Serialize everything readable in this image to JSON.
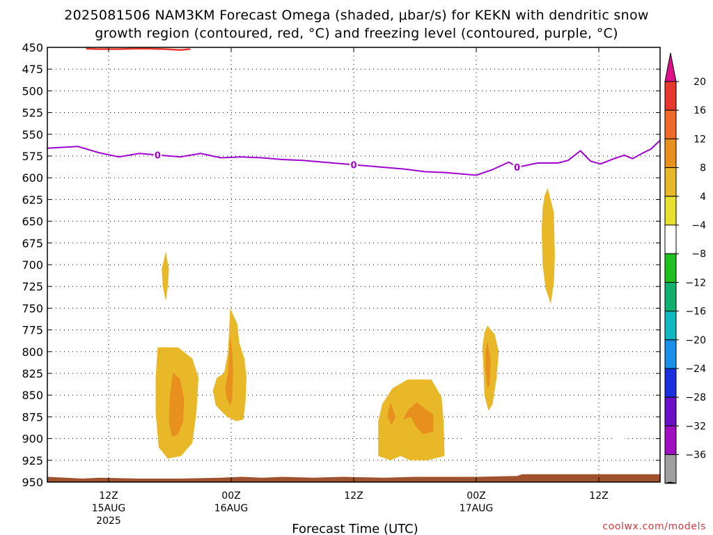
{
  "chart_data": {
    "type": "heatmap",
    "title_lines": [
      "2025081506 NAM3KM Forecast Omega (shaded, μbar/s) for KEKN with dendritic snow",
      "growth region (contoured, red, °C) and freezing level (contoured, purple, °C)"
    ],
    "xlabel": "Forecast Time (UTC)",
    "credit": "coolwx.com/models",
    "x_axis": {
      "unit": "hours from 2025081506",
      "range": [
        0,
        60
      ],
      "ticks": [
        {
          "hour": 6,
          "lines": [
            "12Z",
            "15AUG",
            "2025"
          ]
        },
        {
          "hour": 18,
          "lines": [
            "00Z",
            "16AUG"
          ]
        },
        {
          "hour": 30,
          "lines": [
            "12Z"
          ]
        },
        {
          "hour": 42,
          "lines": [
            "00Z",
            "17AUG"
          ]
        },
        {
          "hour": 54,
          "lines": [
            "12Z"
          ]
        }
      ]
    },
    "y_axis": {
      "unit": "hPa",
      "range": [
        450,
        950
      ],
      "ticks": [
        450,
        475,
        500,
        525,
        550,
        575,
        600,
        625,
        650,
        675,
        700,
        725,
        750,
        775,
        800,
        825,
        850,
        875,
        900,
        925,
        950
      ]
    },
    "grid": true,
    "colorbar": {
      "unit": "μbar/s",
      "boundaries": [
        20,
        16,
        12,
        8,
        4,
        -4,
        -8,
        -12,
        -16,
        -20,
        -24,
        -28,
        -32,
        -36
      ],
      "colors": [
        "#e8382e",
        "#f06a2a",
        "#e8901e",
        "#e8b828",
        "#e6e030",
        "#ffffff",
        "#20c020",
        "#12b070",
        "#10b8c0",
        "#1a90e8",
        "#1a30e0",
        "#6a10c8",
        "#a010c0",
        "#a0a0a0"
      ],
      "top_arrow_color": "#e0108a",
      "bottom_arrow_color": "#000000"
    },
    "freezing_level": {
      "color": "#a000d0",
      "contour_label": "0",
      "label_hours": [
        10.8,
        30,
        46
      ],
      "points": [
        [
          0,
          566
        ],
        [
          3,
          564
        ],
        [
          5,
          571
        ],
        [
          7,
          576
        ],
        [
          9,
          572
        ],
        [
          11,
          574
        ],
        [
          13,
          576
        ],
        [
          15,
          572
        ],
        [
          17,
          577
        ],
        [
          19,
          576
        ],
        [
          21,
          577
        ],
        [
          23,
          579
        ],
        [
          25,
          580
        ],
        [
          27,
          582
        ],
        [
          29,
          584
        ],
        [
          31,
          586
        ],
        [
          33,
          588
        ],
        [
          35,
          590
        ],
        [
          37,
          593
        ],
        [
          39,
          594
        ],
        [
          42,
          597
        ],
        [
          43.5,
          591
        ],
        [
          45.2,
          582
        ],
        [
          46,
          588
        ],
        [
          48,
          583
        ],
        [
          50,
          583
        ],
        [
          51,
          580
        ],
        [
          52.2,
          569
        ],
        [
          53.2,
          581
        ],
        [
          54.2,
          584
        ],
        [
          55.5,
          578
        ],
        [
          56.5,
          574
        ],
        [
          57.3,
          578
        ],
        [
          58.4,
          571
        ],
        [
          59.1,
          567
        ],
        [
          60,
          557
        ]
      ]
    },
    "dgz_contour": {
      "color": "#e8382e",
      "points": [
        [
          3.8,
          451.5
        ],
        [
          5,
          452
        ],
        [
          7,
          452
        ],
        [
          8.5,
          451.5
        ],
        [
          10,
          451.5
        ],
        [
          11.5,
          452
        ],
        [
          13,
          453
        ],
        [
          14,
          452
        ]
      ]
    },
    "omega_areas": [
      {
        "value_band": "4 to 8",
        "points": [
          [
            11.6,
            685
          ],
          [
            11.9,
            705
          ],
          [
            11.8,
            725
          ],
          [
            11.6,
            742
          ],
          [
            11.3,
            725
          ],
          [
            11.2,
            705
          ]
        ]
      },
      {
        "value_band": "4 to 8",
        "points": [
          [
            10.8,
            795
          ],
          [
            12.8,
            795
          ],
          [
            14.2,
            808
          ],
          [
            14.8,
            830
          ],
          [
            14.6,
            870
          ],
          [
            14.2,
            905
          ],
          [
            13.1,
            920
          ],
          [
            11.8,
            923
          ],
          [
            10.9,
            910
          ],
          [
            10.6,
            870
          ],
          [
            10.6,
            830
          ]
        ]
      },
      {
        "value_band": "8 to 12",
        "points": [
          [
            12.3,
            824
          ],
          [
            13.0,
            832
          ],
          [
            13.4,
            855
          ],
          [
            13.3,
            880
          ],
          [
            12.8,
            895
          ],
          [
            12.2,
            898
          ],
          [
            11.9,
            880
          ],
          [
            12.0,
            850
          ]
        ]
      },
      {
        "value_band": "4 to 8",
        "points": [
          [
            17.9,
            750
          ],
          [
            18.6,
            768
          ],
          [
            18.8,
            790
          ],
          [
            19.3,
            808
          ],
          [
            19.5,
            830
          ],
          [
            19.4,
            858
          ],
          [
            19.2,
            878
          ],
          [
            18.5,
            880
          ],
          [
            17.6,
            875
          ],
          [
            16.5,
            862
          ],
          [
            16.2,
            845
          ],
          [
            16.6,
            830
          ],
          [
            17.3,
            825
          ],
          [
            17.7,
            800
          ],
          [
            17.8,
            775
          ]
        ]
      },
      {
        "value_band": "8 to 12",
        "points": [
          [
            17.9,
            782
          ],
          [
            18.1,
            800
          ],
          [
            18.2,
            825
          ],
          [
            18.1,
            855
          ],
          [
            17.9,
            862
          ],
          [
            17.6,
            855
          ],
          [
            17.4,
            842
          ],
          [
            17.7,
            825
          ],
          [
            17.8,
            800
          ]
        ]
      },
      {
        "value_band": "4 to 8",
        "points": [
          [
            35.3,
            832
          ],
          [
            37.6,
            832
          ],
          [
            38.6,
            852
          ],
          [
            38.8,
            880
          ],
          [
            38.9,
            920
          ],
          [
            37.2,
            925
          ],
          [
            35.5,
            925
          ],
          [
            34.6,
            920
          ],
          [
            33.6,
            925
          ],
          [
            32.4,
            920
          ],
          [
            32.4,
            880
          ],
          [
            32.8,
            860
          ],
          [
            33.8,
            842
          ]
        ]
      },
      {
        "value_band": "8 to 12",
        "points": [
          [
            33.6,
            858
          ],
          [
            34.1,
            875
          ],
          [
            33.7,
            885
          ],
          [
            33.3,
            875
          ]
        ]
      },
      {
        "value_band": "8 to 12",
        "points": [
          [
            36.2,
            858
          ],
          [
            37.0,
            866
          ],
          [
            37.8,
            872
          ],
          [
            37.8,
            892
          ],
          [
            36.8,
            895
          ],
          [
            36.0,
            885
          ],
          [
            35.6,
            875
          ],
          [
            34.8,
            878
          ],
          [
            35.4,
            866
          ]
        ]
      },
      {
        "value_band": "4 to 8",
        "points": [
          [
            43.1,
            770
          ],
          [
            43.8,
            780
          ],
          [
            44.2,
            800
          ],
          [
            44.0,
            830
          ],
          [
            43.6,
            860
          ],
          [
            43.2,
            868
          ],
          [
            42.8,
            850
          ],
          [
            42.7,
            820
          ],
          [
            42.6,
            795
          ],
          [
            42.8,
            778
          ]
        ]
      },
      {
        "value_band": "8 to 12",
        "points": [
          [
            43.1,
            788
          ],
          [
            43.4,
            810
          ],
          [
            43.3,
            838
          ],
          [
            43.1,
            842
          ],
          [
            42.9,
            820
          ],
          [
            42.9,
            800
          ]
        ]
      },
      {
        "value_band": "4 to 8",
        "points": [
          [
            49.0,
            612
          ],
          [
            49.6,
            640
          ],
          [
            49.7,
            690
          ],
          [
            49.6,
            720
          ],
          [
            49.3,
            745
          ],
          [
            48.8,
            728
          ],
          [
            48.5,
            700
          ],
          [
            48.4,
            660
          ],
          [
            48.5,
            635
          ],
          [
            48.7,
            620
          ]
        ]
      },
      {
        "value_band": "-8 to -4",
        "points": [
          [
            41.2,
            865
          ],
          [
            41.4,
            865
          ],
          [
            41.4,
            908
          ],
          [
            41.1,
            908
          ],
          [
            40.9,
            900
          ],
          [
            40.9,
            878
          ]
        ]
      },
      {
        "value_band": "-8 to -4",
        "points": [
          [
            55.4,
            722
          ],
          [
            55.7,
            740
          ],
          [
            55.6,
            770
          ],
          [
            55.4,
            778
          ],
          [
            55.2,
            760
          ],
          [
            55.2,
            740
          ]
        ]
      },
      {
        "value_band": "-8 to -4",
        "points": [
          [
            55.4,
            789
          ],
          [
            55.6,
            800
          ],
          [
            55.5,
            811
          ],
          [
            55.3,
            805
          ],
          [
            55.3,
            795
          ]
        ]
      },
      {
        "value_band": "-8 to -4",
        "points": [
          [
            55.5,
            896
          ],
          [
            56.2,
            898
          ],
          [
            56.9,
            903
          ],
          [
            56.9,
            914
          ],
          [
            56.3,
            918
          ],
          [
            55.9,
            910
          ],
          [
            55.5,
            903
          ]
        ]
      }
    ],
    "terrain": {
      "color": "#a0522d",
      "points": [
        [
          0,
          944
        ],
        [
          3.5,
          946
        ],
        [
          5,
          945
        ],
        [
          9,
          946
        ],
        [
          13,
          946
        ],
        [
          17,
          945
        ],
        [
          19,
          944
        ],
        [
          21,
          945
        ],
        [
          23,
          944
        ],
        [
          26,
          945
        ],
        [
          29,
          944
        ],
        [
          33,
          945
        ],
        [
          36,
          944
        ],
        [
          42,
          944
        ],
        [
          46,
          943
        ],
        [
          46.5,
          941
        ],
        [
          50,
          941
        ],
        [
          55,
          941
        ],
        [
          60,
          941
        ]
      ]
    }
  }
}
